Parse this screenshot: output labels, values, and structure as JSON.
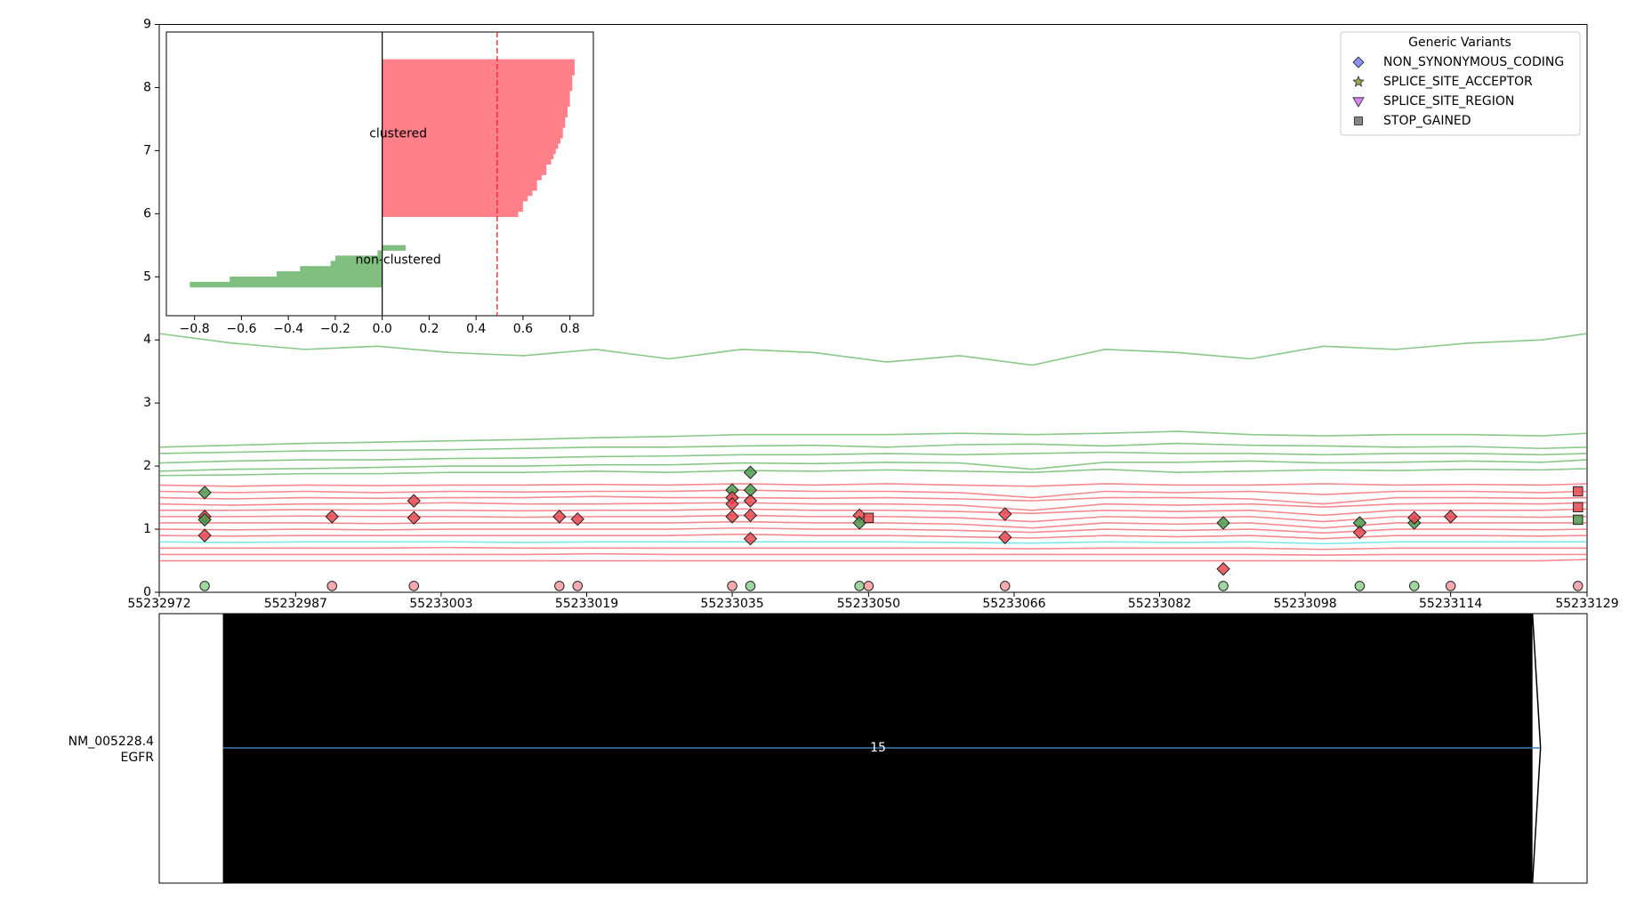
{
  "chart_data": {
    "type": "line",
    "xlim": [
      55232972,
      55233129
    ],
    "xticks": [
      55232972,
      55232987,
      55233003,
      55233019,
      55233035,
      55233050,
      55233066,
      55233082,
      55233098,
      55233114,
      55233129
    ],
    "ylim": [
      0,
      9
    ],
    "yticks": [
      0,
      1,
      2,
      3,
      4,
      5,
      6,
      7,
      8,
      9
    ],
    "grid": false,
    "x": [
      55232972,
      55232980,
      55232988,
      55232996,
      55233004,
      55233012,
      55233020,
      55233028,
      55233036,
      55233044,
      55233052,
      55233060,
      55233068,
      55233076,
      55233084,
      55233092,
      55233100,
      55233108,
      55233116,
      55233124,
      55233129
    ],
    "series": [
      {
        "color": "#3aa33a",
        "values": [
          4.1,
          3.95,
          3.85,
          3.9,
          3.8,
          3.75,
          3.85,
          3.7,
          3.85,
          3.8,
          3.65,
          3.75,
          3.6,
          3.85,
          3.8,
          3.7,
          3.9,
          3.85,
          3.95,
          4.0,
          4.1
        ]
      },
      {
        "color": "#3aa33a",
        "values": [
          2.3,
          2.33,
          2.36,
          2.38,
          2.4,
          2.42,
          2.45,
          2.47,
          2.5,
          2.5,
          2.5,
          2.52,
          2.5,
          2.52,
          2.55,
          2.5,
          2.48,
          2.5,
          2.5,
          2.48,
          2.52
        ]
      },
      {
        "color": "#3aa33a",
        "values": [
          2.2,
          2.22,
          2.24,
          2.25,
          2.26,
          2.28,
          2.3,
          2.3,
          2.32,
          2.33,
          2.3,
          2.34,
          2.35,
          2.32,
          2.36,
          2.33,
          2.32,
          2.3,
          2.31,
          2.28,
          2.3
        ]
      },
      {
        "color": "#3aa33a",
        "values": [
          2.05,
          2.08,
          2.1,
          2.1,
          2.12,
          2.13,
          2.15,
          2.16,
          2.18,
          2.18,
          2.2,
          2.18,
          2.2,
          2.22,
          2.2,
          2.2,
          2.18,
          2.2,
          2.2,
          2.18,
          2.2
        ]
      },
      {
        "color": "#3aa33a",
        "values": [
          1.92,
          1.95,
          1.96,
          1.98,
          2.0,
          2.0,
          2.02,
          2.02,
          2.05,
          2.04,
          2.06,
          2.05,
          1.95,
          2.06,
          2.06,
          2.08,
          2.05,
          2.06,
          2.08,
          2.06,
          2.1
        ]
      },
      {
        "color": "#3aa33a",
        "values": [
          1.85,
          1.86,
          1.88,
          1.88,
          1.9,
          1.9,
          1.92,
          1.9,
          1.93,
          1.92,
          1.94,
          1.92,
          1.9,
          1.95,
          1.9,
          1.92,
          1.94,
          1.93,
          1.95,
          1.94,
          1.96
        ]
      },
      {
        "color": "#f03c46",
        "values": [
          1.7,
          1.68,
          1.7,
          1.69,
          1.7,
          1.7,
          1.71,
          1.7,
          1.72,
          1.7,
          1.72,
          1.7,
          1.68,
          1.72,
          1.7,
          1.7,
          1.72,
          1.7,
          1.71,
          1.7,
          1.72
        ]
      },
      {
        "color": "#f03c46",
        "values": [
          1.6,
          1.58,
          1.6,
          1.58,
          1.6,
          1.59,
          1.6,
          1.6,
          1.62,
          1.6,
          1.6,
          1.58,
          1.5,
          1.6,
          1.58,
          1.6,
          1.55,
          1.6,
          1.6,
          1.58,
          1.6
        ]
      },
      {
        "color": "#f03c46",
        "values": [
          1.5,
          1.48,
          1.5,
          1.49,
          1.5,
          1.5,
          1.52,
          1.5,
          1.5,
          1.49,
          1.5,
          1.48,
          1.45,
          1.5,
          1.5,
          1.48,
          1.4,
          1.5,
          1.5,
          1.49,
          1.5
        ]
      },
      {
        "color": "#f03c46",
        "values": [
          1.4,
          1.38,
          1.4,
          1.4,
          1.42,
          1.4,
          1.4,
          1.41,
          1.42,
          1.4,
          1.4,
          1.38,
          1.3,
          1.4,
          1.38,
          1.4,
          1.35,
          1.4,
          1.41,
          1.4,
          1.42
        ]
      },
      {
        "color": "#f03c46",
        "values": [
          1.3,
          1.3,
          1.31,
          1.3,
          1.3,
          1.29,
          1.3,
          1.3,
          1.32,
          1.3,
          1.3,
          1.28,
          1.25,
          1.3,
          1.28,
          1.3,
          1.22,
          1.3,
          1.3,
          1.3,
          1.32
        ]
      },
      {
        "color": "#f03c46",
        "values": [
          1.2,
          1.2,
          1.21,
          1.2,
          1.2,
          1.19,
          1.2,
          1.2,
          1.22,
          1.2,
          1.2,
          1.18,
          1.12,
          1.2,
          1.18,
          1.2,
          1.12,
          1.2,
          1.2,
          1.19,
          1.2
        ]
      },
      {
        "color": "#f03c46",
        "values": [
          1.1,
          1.1,
          1.1,
          1.09,
          1.1,
          1.1,
          1.1,
          1.1,
          1.12,
          1.1,
          1.1,
          1.08,
          1.02,
          1.1,
          1.08,
          1.1,
          1.02,
          1.1,
          1.1,
          1.1,
          1.1
        ]
      },
      {
        "color": "#f03c46",
        "values": [
          1.0,
          0.99,
          1.0,
          0.99,
          1.0,
          1.0,
          1.0,
          1.0,
          1.02,
          1.0,
          1.0,
          0.98,
          0.95,
          1.0,
          0.98,
          1.0,
          0.94,
          1.0,
          1.0,
          0.99,
          1.0
        ]
      },
      {
        "color": "#f03c46",
        "values": [
          0.9,
          0.89,
          0.9,
          0.9,
          0.9,
          0.9,
          0.9,
          0.9,
          0.92,
          0.9,
          0.9,
          0.88,
          0.86,
          0.9,
          0.88,
          0.9,
          0.85,
          0.9,
          0.9,
          0.89,
          0.9
        ]
      },
      {
        "color": "#20d8d8",
        "values": [
          0.8,
          0.79,
          0.8,
          0.8,
          0.8,
          0.79,
          0.8,
          0.8,
          0.8,
          0.8,
          0.8,
          0.79,
          0.78,
          0.8,
          0.79,
          0.8,
          0.77,
          0.8,
          0.8,
          0.8,
          0.8
        ]
      },
      {
        "color": "#f03c46",
        "values": [
          0.7,
          0.7,
          0.7,
          0.7,
          0.71,
          0.7,
          0.7,
          0.7,
          0.7,
          0.7,
          0.7,
          0.7,
          0.69,
          0.7,
          0.7,
          0.7,
          0.68,
          0.7,
          0.7,
          0.7,
          0.7
        ]
      },
      {
        "color": "#f03c46",
        "values": [
          0.6,
          0.6,
          0.6,
          0.6,
          0.6,
          0.6,
          0.61,
          0.6,
          0.6,
          0.6,
          0.6,
          0.6,
          0.6,
          0.6,
          0.6,
          0.6,
          0.59,
          0.6,
          0.6,
          0.6,
          0.6
        ]
      },
      {
        "color": "#f03c46",
        "values": [
          0.5,
          0.5,
          0.5,
          0.5,
          0.5,
          0.5,
          0.5,
          0.5,
          0.5,
          0.5,
          0.5,
          0.5,
          0.5,
          0.5,
          0.5,
          0.5,
          0.5,
          0.5,
          0.5,
          0.5,
          0.52
        ]
      }
    ],
    "markers": [
      {
        "x": 55232977,
        "y": 1.58,
        "color": "#4c9a4c",
        "shape": "diamond"
      },
      {
        "x": 55232977,
        "y": 1.2,
        "color": "#e8474f",
        "shape": "diamond"
      },
      {
        "x": 55232977,
        "y": 1.15,
        "color": "#4c9a4c",
        "shape": "diamond"
      },
      {
        "x": 55232977,
        "y": 0.9,
        "color": "#e8474f",
        "shape": "diamond"
      },
      {
        "x": 55232977,
        "y": 0.1,
        "color": "#8fcf8f",
        "shape": "circle"
      },
      {
        "x": 55232991,
        "y": 1.2,
        "color": "#e8474f",
        "shape": "diamond"
      },
      {
        "x": 55232991,
        "y": 0.1,
        "color": "#f59aa0",
        "shape": "circle"
      },
      {
        "x": 55233000,
        "y": 1.45,
        "color": "#e8474f",
        "shape": "diamond"
      },
      {
        "x": 55233000,
        "y": 1.18,
        "color": "#e8474f",
        "shape": "diamond"
      },
      {
        "x": 55233000,
        "y": 0.1,
        "color": "#f59aa0",
        "shape": "circle"
      },
      {
        "x": 55233016,
        "y": 1.2,
        "color": "#e8474f",
        "shape": "diamond"
      },
      {
        "x": 55233016,
        "y": 0.1,
        "color": "#f59aa0",
        "shape": "circle"
      },
      {
        "x": 55233018,
        "y": 1.16,
        "color": "#e8474f",
        "shape": "diamond"
      },
      {
        "x": 55233018,
        "y": 0.1,
        "color": "#f59aa0",
        "shape": "circle"
      },
      {
        "x": 55233035,
        "y": 1.62,
        "color": "#4c9a4c",
        "shape": "diamond"
      },
      {
        "x": 55233035,
        "y": 1.5,
        "color": "#e8474f",
        "shape": "diamond"
      },
      {
        "x": 55233035,
        "y": 1.4,
        "color": "#e8474f",
        "shape": "diamond"
      },
      {
        "x": 55233035,
        "y": 1.2,
        "color": "#e8474f",
        "shape": "diamond"
      },
      {
        "x": 55233035,
        "y": 0.1,
        "color": "#f59aa0",
        "shape": "circle"
      },
      {
        "x": 55233037,
        "y": 1.9,
        "color": "#4c9a4c",
        "shape": "diamond"
      },
      {
        "x": 55233037,
        "y": 1.62,
        "color": "#4c9a4c",
        "shape": "diamond"
      },
      {
        "x": 55233037,
        "y": 1.45,
        "color": "#e8474f",
        "shape": "diamond"
      },
      {
        "x": 55233037,
        "y": 1.22,
        "color": "#e8474f",
        "shape": "diamond"
      },
      {
        "x": 55233037,
        "y": 0.85,
        "color": "#e8474f",
        "shape": "diamond"
      },
      {
        "x": 55233037,
        "y": 0.1,
        "color": "#8fcf8f",
        "shape": "circle"
      },
      {
        "x": 55233049,
        "y": 1.22,
        "color": "#e8474f",
        "shape": "diamond"
      },
      {
        "x": 55233049,
        "y": 1.1,
        "color": "#4c9a4c",
        "shape": "diamond"
      },
      {
        "x": 55233049,
        "y": 0.1,
        "color": "#8fcf8f",
        "shape": "circle"
      },
      {
        "x": 55233050,
        "y": 1.18,
        "color": "#e8474f",
        "shape": "square"
      },
      {
        "x": 55233050,
        "y": 0.1,
        "color": "#f59aa0",
        "shape": "circle"
      },
      {
        "x": 55233065,
        "y": 1.24,
        "color": "#e8474f",
        "shape": "diamond"
      },
      {
        "x": 55233065,
        "y": 0.87,
        "color": "#e8474f",
        "shape": "diamond"
      },
      {
        "x": 55233065,
        "y": 0.1,
        "color": "#f59aa0",
        "shape": "circle"
      },
      {
        "x": 55233089,
        "y": 1.1,
        "color": "#4c9a4c",
        "shape": "diamond"
      },
      {
        "x": 55233089,
        "y": 0.37,
        "color": "#e8474f",
        "shape": "diamond"
      },
      {
        "x": 55233089,
        "y": 0.1,
        "color": "#8fcf8f",
        "shape": "circle"
      },
      {
        "x": 55233104,
        "y": 1.1,
        "color": "#4c9a4c",
        "shape": "diamond"
      },
      {
        "x": 55233104,
        "y": 0.95,
        "color": "#e8474f",
        "shape": "diamond"
      },
      {
        "x": 55233104,
        "y": 0.1,
        "color": "#8fcf8f",
        "shape": "circle"
      },
      {
        "x": 55233110,
        "y": 1.1,
        "color": "#4c9a4c",
        "shape": "diamond"
      },
      {
        "x": 55233110,
        "y": 1.18,
        "color": "#e8474f",
        "shape": "diamond"
      },
      {
        "x": 55233110,
        "y": 0.1,
        "color": "#8fcf8f",
        "shape": "circle"
      },
      {
        "x": 55233114,
        "y": 1.2,
        "color": "#e8474f",
        "shape": "diamond"
      },
      {
        "x": 55233114,
        "y": 0.1,
        "color": "#f59aa0",
        "shape": "circle"
      },
      {
        "x": 55233128,
        "y": 1.6,
        "color": "#e8474f",
        "shape": "square"
      },
      {
        "x": 55233128,
        "y": 1.35,
        "color": "#e8474f",
        "shape": "square"
      },
      {
        "x": 55233128,
        "y": 1.15,
        "color": "#4c9a4c",
        "shape": "square"
      },
      {
        "x": 55233128,
        "y": 0.1,
        "color": "#f59aa0",
        "shape": "circle"
      }
    ],
    "legend": {
      "title": "Generic Variants",
      "position": "upper right",
      "items": [
        {
          "name": "NON_SYNONYMOUS_CODING",
          "color": "#7b7bf0",
          "shape": "diamond"
        },
        {
          "name": "SPLICE_SITE_ACCEPTOR",
          "color": "#8a9a3a",
          "shape": "star"
        },
        {
          "name": "SPLICE_SITE_REGION",
          "color": "#d070e8",
          "shape": "triangle"
        },
        {
          "name": "STOP_GAINED",
          "color": "#707070",
          "shape": "square"
        }
      ]
    },
    "inset": {
      "type": "barh",
      "xlim": [
        -0.92,
        0.9
      ],
      "xticks": [
        {
          "value": -0.8,
          "label": "−0.8"
        },
        {
          "value": -0.6,
          "label": "−0.6"
        },
        {
          "value": -0.4,
          "label": "−0.4"
        },
        {
          "value": -0.2,
          "label": "−0.2"
        },
        {
          "value": 0,
          "label": "0.0"
        },
        0.2,
        0.4,
        0.6,
        0.8
      ],
      "threshold": 0.49,
      "clusters": [
        {
          "name": "clustered",
          "color": "#ff8088",
          "values": [
            0.82,
            0.82,
            0.82,
            0.81,
            0.81,
            0.81,
            0.8,
            0.8,
            0.8,
            0.79,
            0.79,
            0.78,
            0.78,
            0.77,
            0.77,
            0.76,
            0.75,
            0.74,
            0.73,
            0.72,
            0.7,
            0.7,
            0.68,
            0.66,
            0.66,
            0.64,
            0.62,
            0.6,
            0.6,
            0.58
          ]
        },
        {
          "name": "non-clustered",
          "color": "#80bf80",
          "values": [
            0.1,
            -0.02,
            -0.2,
            -0.22,
            -0.35,
            -0.45,
            -0.65,
            -0.82
          ]
        }
      ]
    },
    "transcript": {
      "name": "NM_005228.4",
      "gene": "EGFR",
      "exon": "15",
      "start": 55232979,
      "end": 55233123
    }
  }
}
